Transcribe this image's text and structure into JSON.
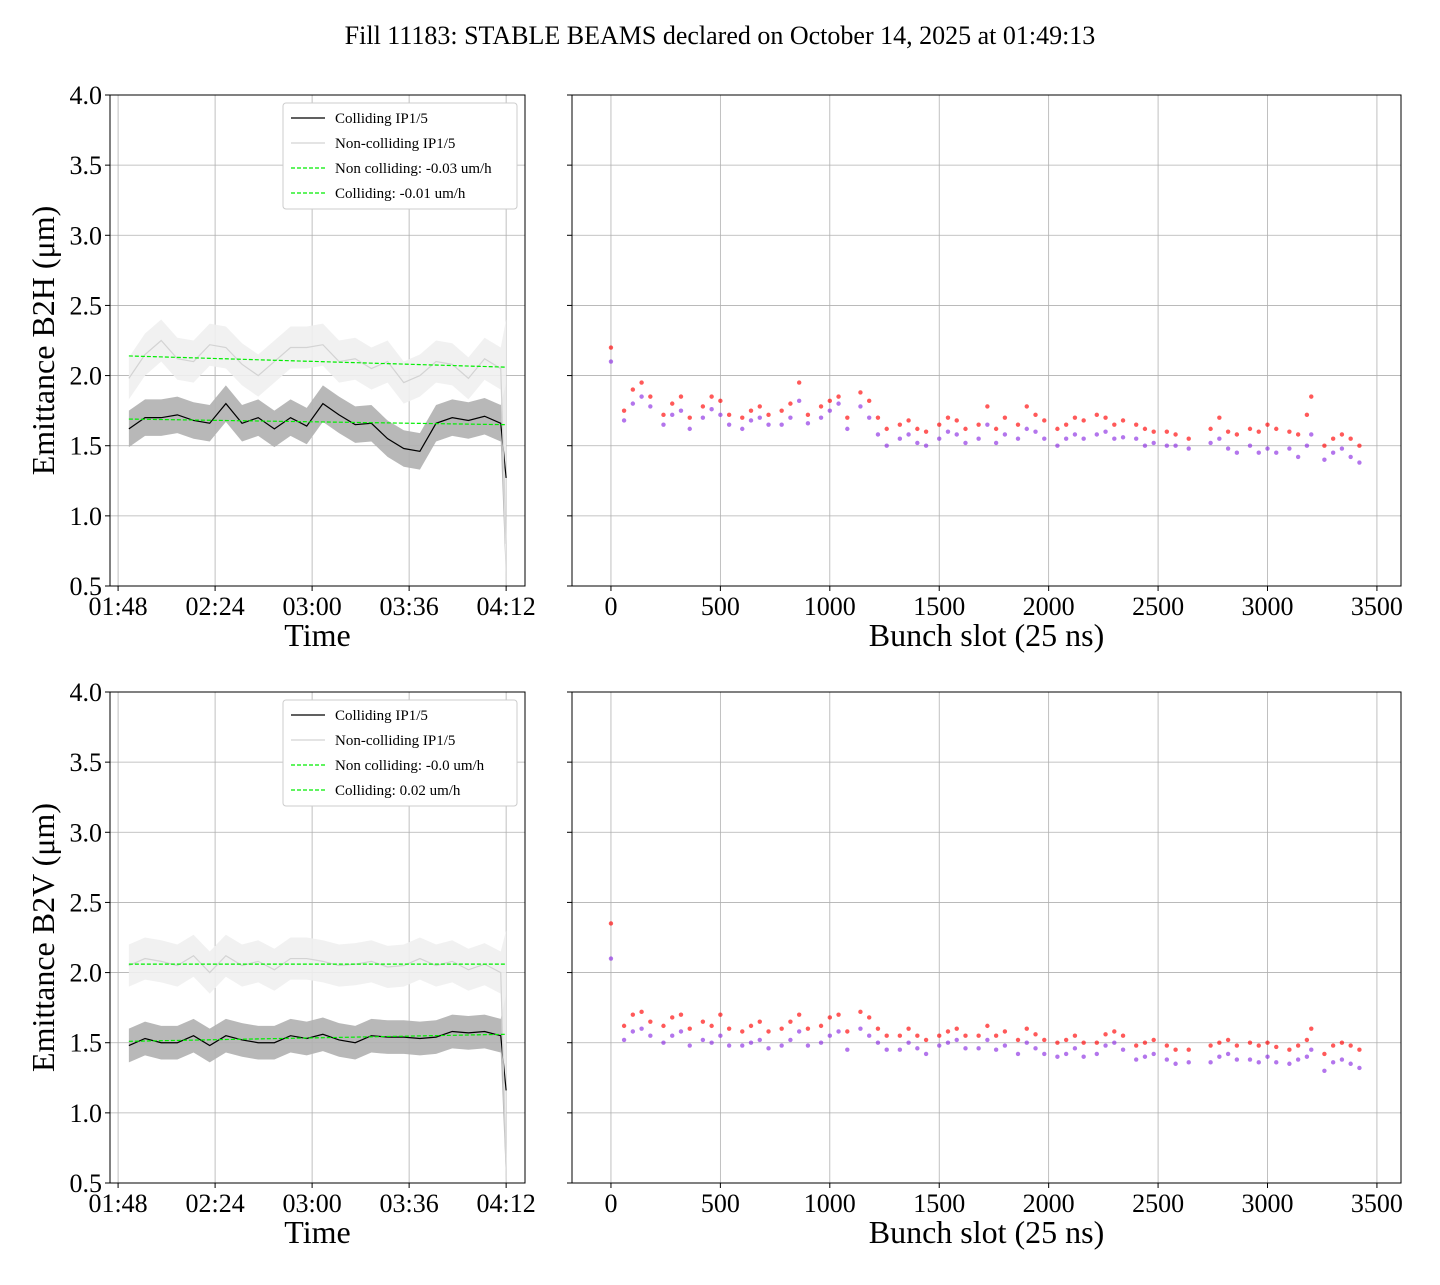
{
  "title": "Fill 11183: STABLE BEAMS declared on October 14, 2025 at 01:49:13",
  "chart_data": [
    {
      "type": "line",
      "xlabel": "Time",
      "ylabel": "Emittance B2H (μm)",
      "grid": true,
      "legend": "upper right",
      "xlim": [
        "01:45",
        "04:19"
      ],
      "xticks": [
        "01:48",
        "02:24",
        "03:00",
        "03:36",
        "04:12"
      ],
      "ylim": [
        0.5,
        4.0
      ],
      "yticks": [
        0.5,
        {
          "value": 1,
          "label": "1.0"
        },
        1.5,
        {
          "value": 2,
          "label": "2.0"
        },
        2.5,
        {
          "value": 3,
          "label": "3.0"
        },
        3.5,
        {
          "value": 4,
          "label": "4.0"
        }
      ],
      "x": [
        "01:52",
        "01:58",
        "02:04",
        "02:10",
        "02:16",
        "02:22",
        "02:28",
        "02:34",
        "02:40",
        "02:46",
        "02:52",
        "02:58",
        "03:04",
        "03:10",
        "03:16",
        "03:22",
        "03:28",
        "03:34",
        "03:40",
        "03:46",
        "03:52",
        "03:58",
        "04:04",
        "04:10",
        "04:12"
      ],
      "series": [
        {
          "name": "Colliding IP1/5",
          "color": "#000000",
          "band_color": "#b0b0b0",
          "values": [
            1.62,
            1.7,
            1.7,
            1.72,
            1.68,
            1.66,
            1.8,
            1.66,
            1.7,
            1.62,
            1.7,
            1.64,
            1.8,
            1.72,
            1.65,
            1.66,
            1.55,
            1.48,
            1.46,
            1.66,
            1.7,
            1.68,
            1.71,
            1.66,
            1.27
          ],
          "lower": [
            1.49,
            1.57,
            1.57,
            1.59,
            1.55,
            1.53,
            1.67,
            1.53,
            1.57,
            1.49,
            1.57,
            1.51,
            1.67,
            1.59,
            1.52,
            1.53,
            1.42,
            1.35,
            1.33,
            1.53,
            1.57,
            1.55,
            1.58,
            1.53,
            0.5
          ],
          "upper": [
            1.75,
            1.83,
            1.83,
            1.85,
            1.81,
            1.79,
            1.93,
            1.79,
            1.83,
            1.75,
            1.83,
            1.77,
            1.93,
            1.85,
            1.78,
            1.79,
            1.68,
            1.61,
            1.59,
            1.79,
            1.83,
            1.81,
            1.84,
            1.79,
            1.95
          ]
        },
        {
          "name": "Non-colliding IP1/5",
          "color": "#d3d3d3",
          "band_color": "#efefef",
          "values": [
            1.98,
            2.15,
            2.25,
            2.12,
            2.1,
            2.22,
            2.2,
            2.08,
            2.0,
            2.1,
            2.2,
            2.2,
            2.22,
            2.1,
            2.12,
            2.05,
            2.1,
            1.95,
            2.0,
            2.1,
            2.08,
            1.98,
            2.12,
            2.05,
            0.8
          ],
          "lower": [
            1.83,
            2.0,
            2.1,
            1.97,
            1.95,
            2.07,
            2.05,
            1.93,
            1.85,
            1.95,
            2.05,
            2.05,
            2.07,
            1.95,
            1.97,
            1.9,
            1.95,
            1.8,
            1.85,
            1.95,
            1.93,
            1.83,
            1.97,
            1.9,
            0.5
          ],
          "upper": [
            2.13,
            2.3,
            2.4,
            2.27,
            2.25,
            2.37,
            2.35,
            2.23,
            2.15,
            2.25,
            2.35,
            2.35,
            2.37,
            2.25,
            2.27,
            2.2,
            2.25,
            2.1,
            2.15,
            2.25,
            2.23,
            2.13,
            2.27,
            2.2,
            2.4
          ]
        },
        {
          "name": "Non colliding: -0.03 um/h",
          "color": "#00ee00",
          "dashed": true,
          "x": [
            "01:52",
            "04:12"
          ],
          "values": [
            2.14,
            2.06
          ]
        },
        {
          "name": "Colliding: -0.01 um/h",
          "color": "#00ee00",
          "dashed": true,
          "x": [
            "01:52",
            "04:12"
          ],
          "values": [
            1.69,
            1.65
          ]
        }
      ]
    },
    {
      "type": "scatter",
      "xlabel": "Bunch slot (25 ns)",
      "grid": true,
      "yticklabels": false,
      "xlim": [
        -178,
        3610
      ],
      "xticks": [
        0,
        500,
        1000,
        1500,
        2000,
        2500,
        3000,
        3500
      ],
      "ylim": [
        0.5,
        4.0
      ],
      "yticks": [
        0.5,
        1,
        1.5,
        2,
        2.5,
        3,
        3.5,
        4
      ],
      "x": [
        0,
        60,
        100,
        140,
        180,
        240,
        280,
        320,
        360,
        420,
        460,
        500,
        540,
        600,
        640,
        680,
        720,
        780,
        820,
        860,
        900,
        960,
        1000,
        1040,
        1080,
        1140,
        1180,
        1220,
        1260,
        1320,
        1360,
        1400,
        1440,
        1500,
        1540,
        1580,
        1620,
        1680,
        1720,
        1760,
        1800,
        1860,
        1900,
        1940,
        1980,
        2040,
        2080,
        2120,
        2160,
        2220,
        2260,
        2300,
        2340,
        2400,
        2440,
        2480,
        2540,
        2580,
        2640,
        2740,
        2780,
        2820,
        2860,
        2920,
        2960,
        3000,
        3040,
        3100,
        3140,
        3180,
        3200,
        3260,
        3300,
        3340,
        3380,
        3420
      ],
      "series": [
        {
          "color": "#ff0000",
          "values": [
            2.2,
            1.75,
            1.9,
            1.95,
            1.85,
            1.72,
            1.8,
            1.85,
            1.7,
            1.78,
            1.85,
            1.82,
            1.72,
            1.7,
            1.75,
            1.78,
            1.72,
            1.75,
            1.8,
            1.95,
            1.72,
            1.78,
            1.82,
            1.85,
            1.7,
            1.88,
            1.82,
            1.7,
            1.62,
            1.65,
            1.68,
            1.62,
            1.6,
            1.65,
            1.7,
            1.68,
            1.62,
            1.65,
            1.78,
            1.62,
            1.7,
            1.65,
            1.78,
            1.72,
            1.68,
            1.62,
            1.65,
            1.7,
            1.68,
            1.72,
            1.7,
            1.65,
            1.68,
            1.65,
            1.62,
            1.6,
            1.6,
            1.58,
            1.55,
            1.62,
            1.7,
            1.6,
            1.58,
            1.62,
            1.6,
            1.65,
            1.62,
            1.6,
            1.58,
            1.72,
            1.85,
            1.5,
            1.55,
            1.58,
            1.55,
            1.5
          ]
        },
        {
          "color": "#8a2be2",
          "values": [
            2.1,
            1.68,
            1.8,
            1.85,
            1.78,
            1.65,
            1.72,
            1.75,
            1.62,
            1.7,
            1.76,
            1.72,
            1.65,
            1.62,
            1.68,
            1.7,
            1.65,
            1.65,
            1.7,
            1.82,
            1.66,
            1.7,
            1.75,
            1.8,
            1.62,
            1.78,
            1.7,
            1.58,
            1.5,
            1.55,
            1.58,
            1.52,
            1.5,
            1.55,
            1.6,
            1.58,
            1.52,
            1.55,
            1.65,
            1.52,
            1.58,
            1.55,
            1.62,
            1.6,
            1.55,
            1.5,
            1.55,
            1.58,
            1.55,
            1.58,
            1.6,
            1.55,
            1.56,
            1.55,
            1.5,
            1.52,
            1.5,
            1.5,
            1.48,
            1.52,
            1.55,
            1.48,
            1.45,
            1.5,
            1.45,
            1.48,
            1.45,
            1.48,
            1.42,
            1.5,
            1.58,
            1.4,
            1.45,
            1.48,
            1.42,
            1.38
          ]
        }
      ]
    },
    {
      "type": "line",
      "xlabel": "Time",
      "ylabel": "Emittance B2V (μm)",
      "grid": true,
      "legend": "upper right",
      "xlim": [
        "01:45",
        "04:19"
      ],
      "xticks": [
        "01:48",
        "02:24",
        "03:00",
        "03:36",
        "04:12"
      ],
      "ylim": [
        0.5,
        4.0
      ],
      "yticks": [
        0.5,
        {
          "value": 1,
          "label": "1.0"
        },
        1.5,
        {
          "value": 2,
          "label": "2.0"
        },
        2.5,
        {
          "value": 3,
          "label": "3.0"
        },
        3.5,
        {
          "value": 4,
          "label": "4.0"
        }
      ],
      "x": [
        "01:52",
        "01:58",
        "02:04",
        "02:10",
        "02:16",
        "02:22",
        "02:28",
        "02:34",
        "02:40",
        "02:46",
        "02:52",
        "02:58",
        "03:04",
        "03:10",
        "03:16",
        "03:22",
        "03:28",
        "03:34",
        "03:40",
        "03:46",
        "03:52",
        "03:58",
        "04:04",
        "04:10",
        "04:12"
      ],
      "series": [
        {
          "name": "Colliding IP1/5",
          "color": "#000000",
          "band_color": "#b0b0b0",
          "values": [
            1.48,
            1.53,
            1.5,
            1.5,
            1.55,
            1.48,
            1.55,
            1.52,
            1.5,
            1.5,
            1.55,
            1.53,
            1.56,
            1.52,
            1.5,
            1.55,
            1.54,
            1.54,
            1.53,
            1.54,
            1.58,
            1.57,
            1.58,
            1.55,
            1.16
          ],
          "lower": [
            1.36,
            1.41,
            1.38,
            1.38,
            1.43,
            1.36,
            1.43,
            1.4,
            1.38,
            1.38,
            1.43,
            1.41,
            1.44,
            1.4,
            1.38,
            1.43,
            1.42,
            1.42,
            1.41,
            1.42,
            1.46,
            1.45,
            1.46,
            1.43,
            0.5
          ],
          "upper": [
            1.6,
            1.65,
            1.62,
            1.62,
            1.67,
            1.6,
            1.67,
            1.64,
            1.62,
            1.62,
            1.67,
            1.65,
            1.68,
            1.64,
            1.62,
            1.67,
            1.66,
            1.66,
            1.65,
            1.66,
            1.7,
            1.69,
            1.7,
            1.67,
            1.85
          ]
        },
        {
          "name": "Non-colliding IP1/5",
          "color": "#d3d3d3",
          "band_color": "#efefef",
          "values": [
            2.05,
            2.1,
            2.08,
            2.05,
            2.12,
            2.0,
            2.12,
            2.05,
            2.08,
            2.02,
            2.1,
            2.1,
            2.08,
            2.05,
            2.06,
            2.08,
            2.04,
            2.05,
            2.1,
            2.05,
            2.08,
            2.02,
            2.06,
            2.0,
            0.6
          ],
          "lower": [
            1.9,
            1.95,
            1.93,
            1.9,
            1.97,
            1.85,
            1.97,
            1.9,
            1.93,
            1.87,
            1.95,
            1.95,
            1.93,
            1.9,
            1.91,
            1.93,
            1.89,
            1.9,
            1.95,
            1.9,
            1.93,
            1.87,
            1.91,
            1.85,
            0.5
          ],
          "upper": [
            2.2,
            2.25,
            2.23,
            2.2,
            2.27,
            2.15,
            2.27,
            2.2,
            2.23,
            2.17,
            2.25,
            2.25,
            2.23,
            2.2,
            2.21,
            2.23,
            2.19,
            2.2,
            2.25,
            2.2,
            2.23,
            2.17,
            2.21,
            2.15,
            2.3
          ]
        },
        {
          "name": "Non colliding: -0.0 um/h",
          "color": "#00ee00",
          "dashed": true,
          "x": [
            "01:52",
            "04:12"
          ],
          "values": [
            2.06,
            2.06
          ]
        },
        {
          "name": "Colliding: 0.02 um/h",
          "color": "#00ee00",
          "dashed": true,
          "x": [
            "01:52",
            "04:12"
          ],
          "values": [
            1.51,
            1.56
          ]
        }
      ]
    },
    {
      "type": "scatter",
      "xlabel": "Bunch slot (25 ns)",
      "grid": true,
      "yticklabels": false,
      "xlim": [
        -178,
        3610
      ],
      "xticks": [
        0,
        500,
        1000,
        1500,
        2000,
        2500,
        3000,
        3500
      ],
      "ylim": [
        0.5,
        4.0
      ],
      "yticks": [
        0.5,
        1,
        1.5,
        2,
        2.5,
        3,
        3.5,
        4
      ],
      "x": [
        0,
        60,
        100,
        140,
        180,
        240,
        280,
        320,
        360,
        420,
        460,
        500,
        540,
        600,
        640,
        680,
        720,
        780,
        820,
        860,
        900,
        960,
        1000,
        1040,
        1080,
        1140,
        1180,
        1220,
        1260,
        1320,
        1360,
        1400,
        1440,
        1500,
        1540,
        1580,
        1620,
        1680,
        1720,
        1760,
        1800,
        1860,
        1900,
        1940,
        1980,
        2040,
        2080,
        2120,
        2160,
        2220,
        2260,
        2300,
        2340,
        2400,
        2440,
        2480,
        2540,
        2580,
        2640,
        2740,
        2780,
        2820,
        2860,
        2920,
        2960,
        3000,
        3040,
        3100,
        3140,
        3180,
        3200,
        3260,
        3300,
        3340,
        3380,
        3420
      ],
      "series": [
        {
          "color": "#ff0000",
          "values": [
            2.35,
            1.62,
            1.7,
            1.72,
            1.65,
            1.62,
            1.68,
            1.7,
            1.6,
            1.65,
            1.62,
            1.7,
            1.6,
            1.58,
            1.62,
            1.65,
            1.58,
            1.6,
            1.65,
            1.7,
            1.6,
            1.62,
            1.68,
            1.7,
            1.58,
            1.72,
            1.68,
            1.6,
            1.55,
            1.55,
            1.6,
            1.55,
            1.52,
            1.55,
            1.58,
            1.6,
            1.55,
            1.55,
            1.62,
            1.55,
            1.58,
            1.52,
            1.6,
            1.56,
            1.52,
            1.5,
            1.52,
            1.55,
            1.5,
            1.5,
            1.56,
            1.58,
            1.55,
            1.48,
            1.5,
            1.52,
            1.48,
            1.45,
            1.45,
            1.48,
            1.5,
            1.52,
            1.48,
            1.5,
            1.48,
            1.5,
            1.47,
            1.45,
            1.48,
            1.52,
            1.6,
            1.42,
            1.48,
            1.5,
            1.48,
            1.45
          ]
        },
        {
          "color": "#8a2be2",
          "values": [
            2.1,
            1.52,
            1.58,
            1.6,
            1.55,
            1.5,
            1.55,
            1.58,
            1.48,
            1.52,
            1.5,
            1.55,
            1.48,
            1.48,
            1.5,
            1.52,
            1.46,
            1.48,
            1.52,
            1.58,
            1.48,
            1.5,
            1.55,
            1.58,
            1.45,
            1.6,
            1.55,
            1.5,
            1.45,
            1.45,
            1.5,
            1.46,
            1.42,
            1.48,
            1.5,
            1.52,
            1.46,
            1.46,
            1.52,
            1.45,
            1.48,
            1.42,
            1.5,
            1.46,
            1.42,
            1.4,
            1.42,
            1.46,
            1.4,
            1.42,
            1.48,
            1.5,
            1.45,
            1.38,
            1.4,
            1.42,
            1.38,
            1.35,
            1.36,
            1.36,
            1.4,
            1.42,
            1.38,
            1.38,
            1.36,
            1.4,
            1.36,
            1.35,
            1.38,
            1.4,
            1.45,
            1.3,
            1.36,
            1.38,
            1.35,
            1.32
          ]
        }
      ]
    }
  ]
}
